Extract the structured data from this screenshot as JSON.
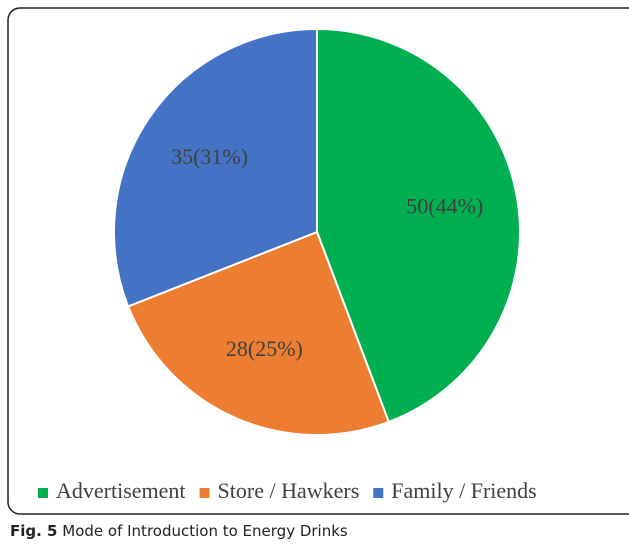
{
  "chart_data": {
    "type": "pie",
    "categories": [
      "Advertisement",
      "Store / Hawkers",
      "Family / Friends"
    ],
    "values": [
      50,
      28,
      35
    ],
    "value_labels": [
      "50(44%)",
      "28(25%)",
      "35(31%)"
    ],
    "colors": [
      "#00b050",
      "#ed7d31",
      "#4472c4"
    ],
    "caption_label": "Fig. 5",
    "caption": "Mode of Introduction to Energy Drinks"
  }
}
